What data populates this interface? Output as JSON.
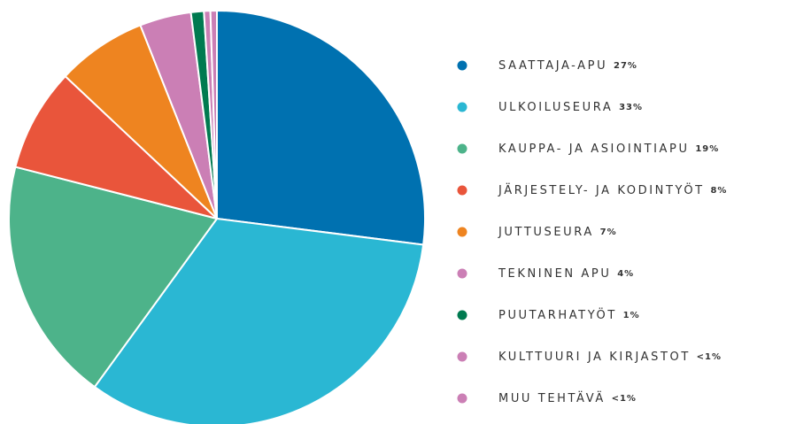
{
  "chart_data": {
    "type": "pie",
    "categories": [
      "SAATTAJA-APU",
      "ULKOILUSEURA",
      "KAUPPA- JA ASIOINTIAPU",
      "JÄRJESTELY- JA KODINTYÖT",
      "JUTTUSEURA",
      "TEKNINEN APU",
      "PUUTARHATYÖT",
      "KULTTUURI JA KIRJASTOT",
      "MUU TEHTÄVÄ"
    ],
    "values": [
      27,
      33,
      19,
      8,
      7,
      4,
      1,
      0.5,
      0.5
    ],
    "value_labels": [
      "27%",
      "33%",
      "19%",
      "8%",
      "7%",
      "4%",
      "1%",
      "<1%",
      "<1%"
    ],
    "colors": [
      "#0071b0",
      "#2ab7d3",
      "#4db38a",
      "#e9553b",
      "#ee8420",
      "#cb7fb5",
      "#007a50",
      "#cb7fb5",
      "#cb7fb5"
    ]
  }
}
